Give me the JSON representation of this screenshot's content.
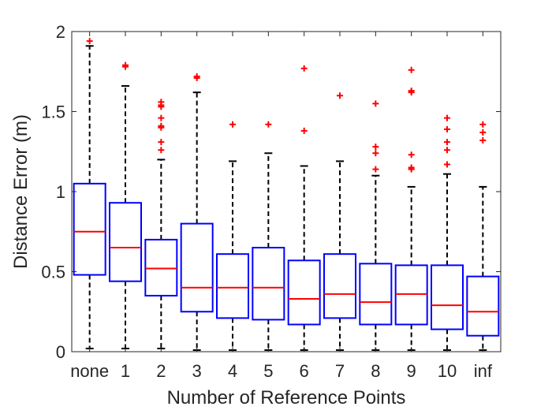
{
  "chart_data": {
    "type": "boxplot",
    "xlabel": "Number of Reference Points",
    "ylabel": "Distance Error (m)",
    "ylim": [
      0,
      2
    ],
    "yticks": [
      0,
      0.5,
      1,
      1.5,
      2
    ],
    "ytick_labels": [
      "0",
      "0.5",
      "1",
      "1.5",
      "2"
    ],
    "categories": [
      "none",
      "1",
      "2",
      "3",
      "4",
      "5",
      "6",
      "7",
      "8",
      "9",
      "10",
      "inf"
    ],
    "grid": false,
    "colors": {
      "box": "#0000ff",
      "median": "#ff0000",
      "outlier": "#ff0000",
      "whisker": "#000000",
      "axes": "#262626"
    },
    "boxes": [
      {
        "category": "none",
        "whisker_low": 0.02,
        "q1": 0.48,
        "median": 0.75,
        "q3": 1.05,
        "whisker_high": 1.91,
        "outliers": [
          1.94
        ]
      },
      {
        "category": "1",
        "whisker_low": 0.02,
        "q1": 0.44,
        "median": 0.65,
        "q3": 0.93,
        "whisker_high": 1.66,
        "outliers": [
          1.78,
          1.79
        ]
      },
      {
        "category": "2",
        "whisker_low": 0.02,
        "q1": 0.35,
        "median": 0.52,
        "q3": 0.7,
        "whisker_high": 1.2,
        "outliers": [
          1.26,
          1.31,
          1.4,
          1.41,
          1.46,
          1.53,
          1.54,
          1.56
        ]
      },
      {
        "category": "3",
        "whisker_low": 0.01,
        "q1": 0.25,
        "median": 0.4,
        "q3": 0.8,
        "whisker_high": 1.62,
        "outliers": [
          1.71,
          1.72
        ]
      },
      {
        "category": "4",
        "whisker_low": 0.01,
        "q1": 0.21,
        "median": 0.4,
        "q3": 0.61,
        "whisker_high": 1.19,
        "outliers": [
          1.42
        ]
      },
      {
        "category": "5",
        "whisker_low": 0.01,
        "q1": 0.2,
        "median": 0.4,
        "q3": 0.65,
        "whisker_high": 1.24,
        "outliers": [
          1.42
        ]
      },
      {
        "category": "6",
        "whisker_low": 0.01,
        "q1": 0.17,
        "median": 0.33,
        "q3": 0.57,
        "whisker_high": 1.16,
        "outliers": [
          1.38,
          1.77
        ]
      },
      {
        "category": "7",
        "whisker_low": 0.01,
        "q1": 0.21,
        "median": 0.36,
        "q3": 0.61,
        "whisker_high": 1.19,
        "outliers": [
          1.6
        ]
      },
      {
        "category": "8",
        "whisker_low": 0.01,
        "q1": 0.17,
        "median": 0.31,
        "q3": 0.55,
        "whisker_high": 1.1,
        "outliers": [
          1.14,
          1.24,
          1.28,
          1.55
        ]
      },
      {
        "category": "9",
        "whisker_low": 0.01,
        "q1": 0.17,
        "median": 0.36,
        "q3": 0.54,
        "whisker_high": 1.03,
        "outliers": [
          1.14,
          1.15,
          1.23,
          1.62,
          1.63,
          1.76
        ]
      },
      {
        "category": "10",
        "whisker_low": 0.01,
        "q1": 0.14,
        "median": 0.29,
        "q3": 0.54,
        "whisker_high": 1.11,
        "outliers": [
          1.17,
          1.26,
          1.31,
          1.39,
          1.46
        ]
      },
      {
        "category": "inf",
        "whisker_low": 0.01,
        "q1": 0.1,
        "median": 0.25,
        "q3": 0.47,
        "whisker_high": 1.03,
        "outliers": [
          1.32,
          1.37,
          1.42
        ]
      }
    ]
  }
}
